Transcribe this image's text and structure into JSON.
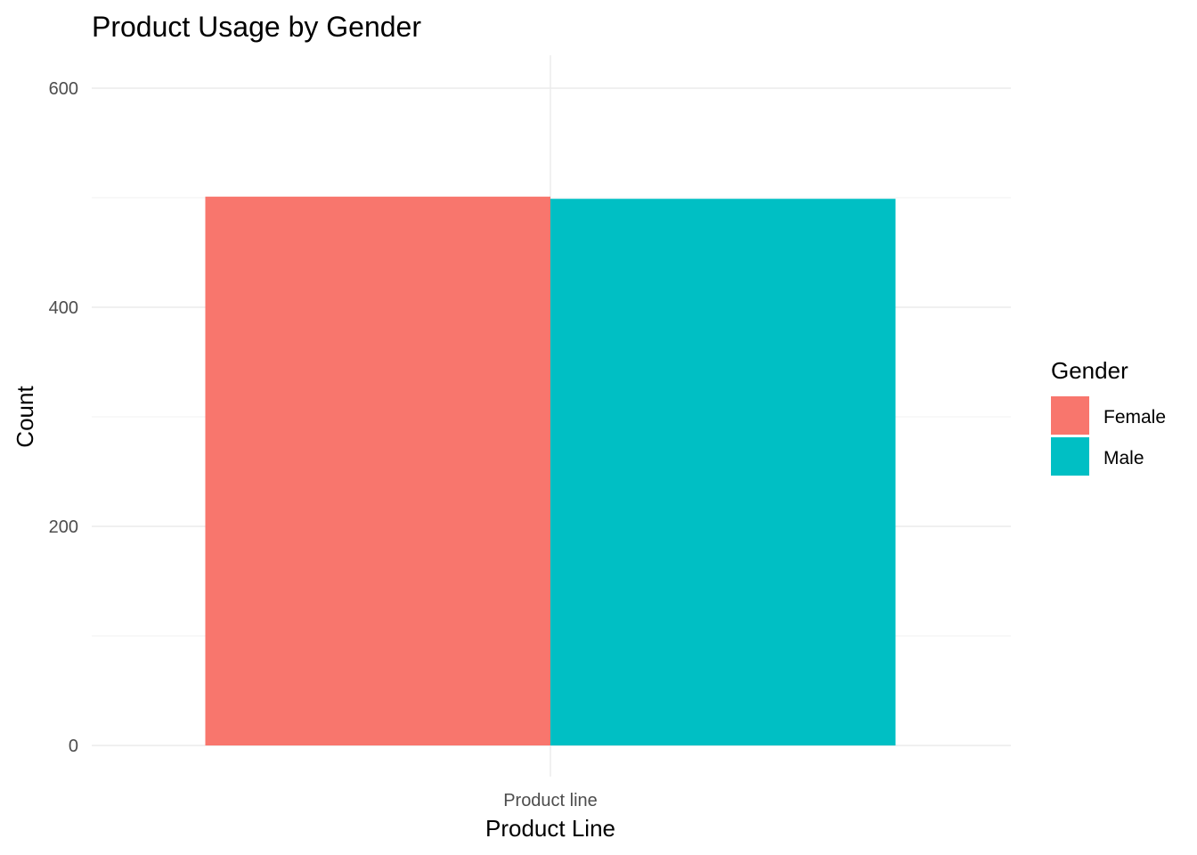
{
  "chart_data": {
    "type": "bar",
    "title": "Product Usage by Gender",
    "xlabel": "Product Line",
    "ylabel": "Count",
    "categories": [
      "Product line"
    ],
    "series": [
      {
        "name": "Female",
        "values": [
          501
        ],
        "color": "#F8766D"
      },
      {
        "name": "Male",
        "values": [
          499
        ],
        "color": "#00BFC4"
      }
    ],
    "ylim": [
      0,
      630
    ],
    "yticks": [
      0,
      200,
      400,
      600
    ],
    "ytick_labels": [
      "0",
      "200",
      "400",
      "600"
    ],
    "grid": true,
    "legend": {
      "title": "Gender",
      "placement": "right",
      "entries": [
        "Female",
        "Male"
      ]
    }
  }
}
